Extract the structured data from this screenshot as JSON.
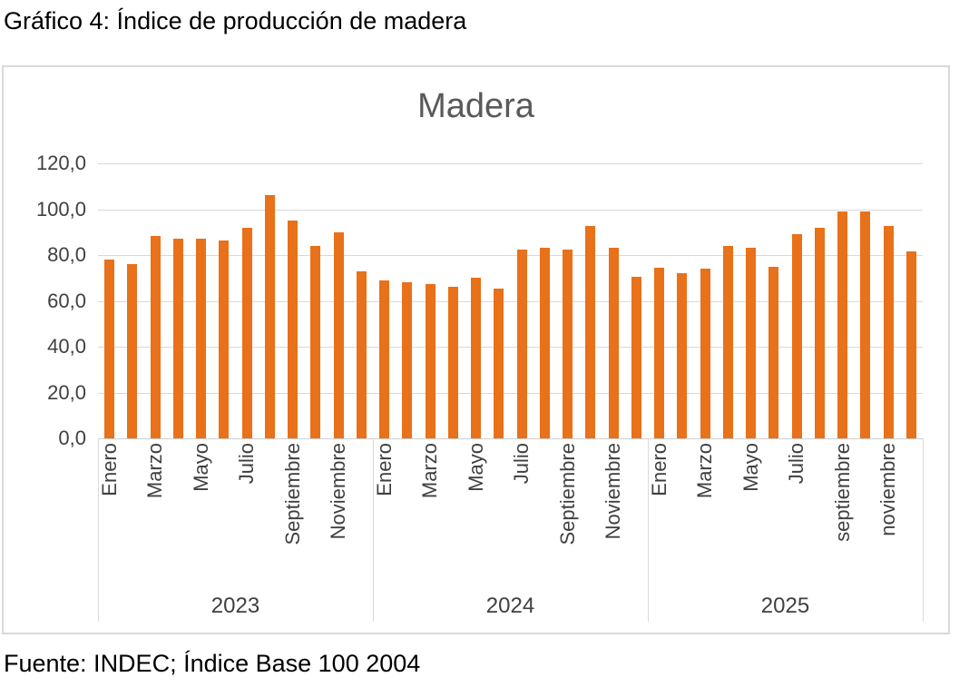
{
  "page": {
    "header_title": "Gráfico 4: Índice de producción de madera",
    "footer_source": "Fuente: INDEC; Índice Base 100 2004"
  },
  "chart_data": {
    "type": "bar",
    "title": "Madera",
    "xlabel": "",
    "ylabel": "",
    "ylim": [
      0,
      120
    ],
    "ytick_step": 20,
    "ytick_labels": [
      "0,0",
      "20,0",
      "40,0",
      "60,0",
      "80,0",
      "100,0",
      "120,0"
    ],
    "grid": true,
    "legend": "none",
    "bar_color": "#e8711a",
    "groups": [
      {
        "year": "2023",
        "tick_labels": [
          "Enero",
          "Marzo",
          "Mayo",
          "Julio",
          "Septiembre",
          "Noviembre"
        ],
        "tick_slots": [
          0,
          2,
          4,
          6,
          8,
          10
        ],
        "values": [
          78,
          76,
          88.5,
          87,
          87,
          86.5,
          92,
          106,
          95,
          84,
          90,
          73
        ]
      },
      {
        "year": "2024",
        "tick_labels": [
          "Enero",
          "Marzo",
          "Mayo",
          "Julio",
          "Septiembre",
          "Noviembre"
        ],
        "tick_slots": [
          0,
          2,
          4,
          6,
          8,
          10
        ],
        "values": [
          69,
          68,
          67.5,
          66,
          70,
          65.5,
          82.5,
          83,
          82.5,
          92.5,
          83,
          70.5
        ]
      },
      {
        "year": "2025",
        "tick_labels": [
          "Enero",
          "Marzo",
          "Mayo",
          "Julio",
          "septiembre",
          "noviembre"
        ],
        "tick_slots": [
          0,
          2,
          4,
          6,
          8,
          10
        ],
        "values": [
          74.5,
          72,
          74,
          84,
          83,
          75,
          89,
          92,
          99,
          99,
          92.5,
          81.5
        ]
      }
    ]
  }
}
